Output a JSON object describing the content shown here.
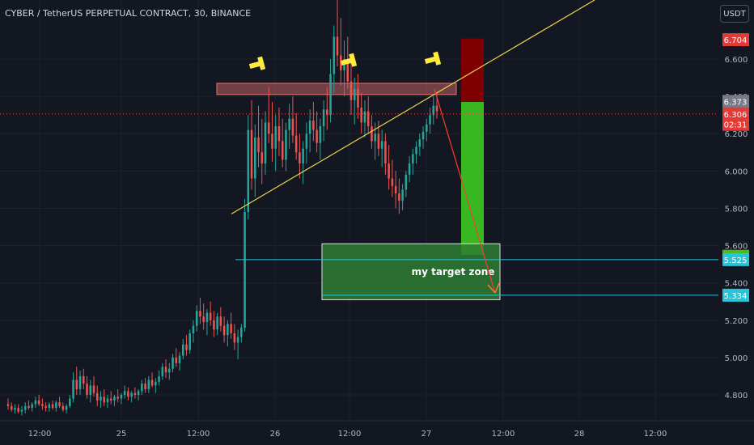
{
  "header": {
    "symbol_title": "CYBER / TetherUS PERPETUAL CONTRACT, 30, BINANCE"
  },
  "currency_button": "USDT",
  "colors": {
    "background": "#131722",
    "bull_candle": "#26a69a",
    "bear_candle": "#ef5350",
    "trendline": "#e8d44d",
    "resistance_zone": "#e57373",
    "target_zone": "#2e7d32",
    "stop_zone": "#7f0000",
    "profit_zone": "#37b820",
    "arrow": "#ff3b30",
    "cyan_line": "#26c6da"
  },
  "chart_data": {
    "type": "candlestick",
    "title": "CYBER / TetherUS PERPETUAL CONTRACT, 30, BINANCE",
    "y_tick_labels": [
      "6.600",
      "6.400",
      "6.200",
      "6.000",
      "5.800",
      "5.600",
      "5.400",
      "5.200",
      "5.000",
      "4.800"
    ],
    "x_tick_labels": [
      "12:00",
      "25",
      "12:00",
      "26",
      "12:00",
      "27",
      "12:00",
      "28",
      "12:00"
    ],
    "ylim": [
      4.69,
      7.0
    ],
    "annotations": {
      "target_zone_label": "my target zone",
      "resistance_zone": {
        "low": 6.41,
        "high": 6.47
      },
      "target_zone": {
        "low": 5.31,
        "high": 5.61
      },
      "stop_zone": {
        "low": 6.37,
        "high": 6.71
      },
      "profit_zone": {
        "low": 5.55,
        "high": 6.37
      },
      "trendline": {
        "start": {
          "x": "25 15:00",
          "y": 5.77
        },
        "end": {
          "x": "27 12:00",
          "y": 7.0
        }
      },
      "cyan_lines": [
        5.525,
        5.334
      ]
    },
    "price_labels": [
      {
        "text": "6.704",
        "value": 6.704,
        "color": "#e53935"
      },
      {
        "text": "6.373",
        "value": 6.373,
        "color": "#787b86"
      },
      {
        "text": "6.306",
        "value": 6.306,
        "color": "#e53935"
      },
      {
        "text": "02:31",
        "value": 6.25,
        "color": "#e53935"
      },
      {
        "text": "5.543",
        "value": 5.543,
        "color": "#4cbb17"
      },
      {
        "text": "5.525",
        "value": 5.525,
        "color": "#26c6da"
      },
      {
        "text": "5.334",
        "value": 5.334,
        "color": "#26c6da"
      }
    ],
    "candles_ohlc": [
      [
        4.75,
        4.78,
        4.72,
        4.74
      ],
      [
        4.74,
        4.76,
        4.71,
        4.72
      ],
      [
        4.72,
        4.75,
        4.7,
        4.73
      ],
      [
        4.73,
        4.75,
        4.7,
        4.71
      ],
      [
        4.71,
        4.74,
        4.69,
        4.72
      ],
      [
        4.72,
        4.76,
        4.7,
        4.74
      ],
      [
        4.74,
        4.77,
        4.72,
        4.73
      ],
      [
        4.73,
        4.76,
        4.71,
        4.75
      ],
      [
        4.75,
        4.79,
        4.73,
        4.77
      ],
      [
        4.77,
        4.8,
        4.74,
        4.75
      ],
      [
        4.75,
        4.78,
        4.72,
        4.74
      ],
      [
        4.74,
        4.76,
        4.71,
        4.73
      ],
      [
        4.73,
        4.76,
        4.71,
        4.75
      ],
      [
        4.75,
        4.77,
        4.72,
        4.73
      ],
      [
        4.73,
        4.77,
        4.71,
        4.76
      ],
      [
        4.76,
        4.79,
        4.73,
        4.74
      ],
      [
        4.74,
        4.76,
        4.71,
        4.72
      ],
      [
        4.72,
        4.75,
        4.7,
        4.74
      ],
      [
        4.74,
        4.8,
        4.73,
        4.78
      ],
      [
        4.78,
        4.92,
        4.76,
        4.88
      ],
      [
        4.88,
        4.95,
        4.8,
        4.83
      ],
      [
        4.83,
        4.93,
        4.8,
        4.9
      ],
      [
        4.9,
        4.94,
        4.83,
        4.86
      ],
      [
        4.86,
        4.9,
        4.78,
        4.8
      ],
      [
        4.8,
        4.88,
        4.76,
        4.85
      ],
      [
        4.85,
        4.9,
        4.79,
        4.81
      ],
      [
        4.81,
        4.85,
        4.74,
        4.77
      ],
      [
        4.77,
        4.82,
        4.73,
        4.79
      ],
      [
        4.79,
        4.83,
        4.74,
        4.76
      ],
      [
        4.76,
        4.8,
        4.73,
        4.78
      ],
      [
        4.78,
        4.82,
        4.75,
        4.77
      ],
      [
        4.77,
        4.8,
        4.74,
        4.79
      ],
      [
        4.79,
        4.83,
        4.76,
        4.78
      ],
      [
        4.78,
        4.81,
        4.75,
        4.8
      ],
      [
        4.8,
        4.85,
        4.78,
        4.82
      ],
      [
        4.82,
        4.84,
        4.77,
        4.79
      ],
      [
        4.79,
        4.82,
        4.76,
        4.81
      ],
      [
        4.81,
        4.84,
        4.78,
        4.8
      ],
      [
        4.8,
        4.83,
        4.77,
        4.82
      ],
      [
        4.82,
        4.88,
        4.8,
        4.86
      ],
      [
        4.86,
        4.89,
        4.81,
        4.83
      ],
      [
        4.83,
        4.9,
        4.81,
        4.88
      ],
      [
        4.88,
        4.92,
        4.84,
        4.85
      ],
      [
        4.85,
        4.89,
        4.81,
        4.87
      ],
      [
        4.87,
        4.93,
        4.85,
        4.9
      ],
      [
        4.9,
        4.97,
        4.88,
        4.95
      ],
      [
        4.95,
        4.99,
        4.89,
        4.92
      ],
      [
        4.92,
        4.97,
        4.88,
        4.94
      ],
      [
        4.94,
        5.02,
        4.92,
        5.0
      ],
      [
        5.0,
        5.05,
        4.95,
        4.97
      ],
      [
        4.97,
        5.03,
        4.93,
        5.01
      ],
      [
        5.01,
        5.1,
        4.99,
        5.07
      ],
      [
        5.07,
        5.12,
        5.01,
        5.04
      ],
      [
        5.04,
        5.15,
        5.02,
        5.13
      ],
      [
        5.13,
        5.2,
        5.08,
        5.17
      ],
      [
        5.17,
        5.28,
        5.14,
        5.25
      ],
      [
        5.25,
        5.32,
        5.18,
        5.22
      ],
      [
        5.22,
        5.29,
        5.15,
        5.19
      ],
      [
        5.19,
        5.26,
        5.12,
        5.24
      ],
      [
        5.24,
        5.3,
        5.17,
        5.2
      ],
      [
        5.2,
        5.25,
        5.11,
        5.15
      ],
      [
        5.15,
        5.24,
        5.12,
        5.22
      ],
      [
        5.22,
        5.27,
        5.14,
        5.17
      ],
      [
        5.17,
        5.22,
        5.08,
        5.12
      ],
      [
        5.12,
        5.2,
        5.06,
        5.18
      ],
      [
        5.18,
        5.24,
        5.1,
        5.13
      ],
      [
        5.13,
        5.18,
        5.04,
        5.08
      ],
      [
        5.08,
        5.15,
        4.99,
        5.11
      ],
      [
        5.11,
        5.18,
        5.08,
        5.16
      ],
      [
        5.16,
        5.85,
        5.14,
        5.78
      ],
      [
        5.78,
        6.3,
        5.74,
        6.22
      ],
      [
        6.22,
        6.38,
        5.9,
        5.96
      ],
      [
        5.96,
        6.25,
        5.86,
        6.18
      ],
      [
        6.18,
        6.35,
        6.02,
        6.1
      ],
      [
        6.1,
        6.28,
        5.93,
        6.04
      ],
      [
        6.04,
        6.32,
        5.98,
        6.26
      ],
      [
        6.26,
        6.45,
        6.15,
        6.2
      ],
      [
        6.2,
        6.37,
        6.05,
        6.12
      ],
      [
        6.12,
        6.3,
        6.0,
        6.24
      ],
      [
        6.24,
        6.34,
        6.08,
        6.16
      ],
      [
        6.16,
        6.28,
        6.02,
        6.06
      ],
      [
        6.06,
        6.26,
        6.0,
        6.22
      ],
      [
        6.22,
        6.36,
        6.12,
        6.28
      ],
      [
        6.28,
        6.4,
        6.15,
        6.19
      ],
      [
        6.19,
        6.31,
        6.06,
        6.1
      ],
      [
        6.1,
        6.2,
        5.96,
        6.04
      ],
      [
        6.04,
        6.16,
        5.93,
        6.12
      ],
      [
        6.12,
        6.26,
        6.04,
        6.2
      ],
      [
        6.2,
        6.33,
        6.1,
        6.27
      ],
      [
        6.27,
        6.37,
        6.16,
        6.22
      ],
      [
        6.22,
        6.32,
        6.1,
        6.15
      ],
      [
        6.15,
        6.28,
        6.06,
        6.24
      ],
      [
        6.24,
        6.38,
        6.16,
        6.33
      ],
      [
        6.33,
        6.45,
        6.22,
        6.3
      ],
      [
        6.3,
        6.6,
        6.26,
        6.52
      ],
      [
        6.52,
        6.78,
        6.42,
        6.72
      ],
      [
        6.72,
        6.92,
        6.56,
        6.62
      ],
      [
        6.62,
        6.82,
        6.46,
        6.54
      ],
      [
        6.54,
        6.7,
        6.4,
        6.6
      ],
      [
        6.6,
        6.72,
        6.44,
        6.48
      ],
      [
        6.48,
        6.58,
        6.3,
        6.38
      ],
      [
        6.38,
        6.5,
        6.25,
        6.44
      ],
      [
        6.44,
        6.52,
        6.28,
        6.34
      ],
      [
        6.34,
        6.42,
        6.2,
        6.26
      ],
      [
        6.26,
        6.38,
        6.18,
        6.32
      ],
      [
        6.32,
        6.4,
        6.2,
        6.24
      ],
      [
        6.24,
        6.3,
        6.12,
        6.16
      ],
      [
        6.16,
        6.26,
        6.06,
        6.2
      ],
      [
        6.2,
        6.27,
        6.08,
        6.12
      ],
      [
        6.12,
        6.22,
        6.02,
        6.16
      ],
      [
        6.16,
        6.2,
        5.98,
        6.04
      ],
      [
        6.04,
        6.14,
        5.9,
        5.96
      ],
      [
        5.96,
        6.06,
        5.86,
        5.92
      ],
      [
        5.92,
        6.0,
        5.8,
        5.88
      ],
      [
        5.88,
        5.96,
        5.77,
        5.84
      ],
      [
        5.84,
        5.93,
        5.79,
        5.9
      ],
      [
        5.9,
        6.0,
        5.86,
        5.98
      ],
      [
        5.98,
        6.08,
        5.94,
        6.04
      ],
      [
        6.04,
        6.12,
        5.98,
        6.09
      ],
      [
        6.09,
        6.16,
        6.04,
        6.13
      ],
      [
        6.13,
        6.2,
        6.08,
        6.17
      ],
      [
        6.17,
        6.24,
        6.12,
        6.21
      ],
      [
        6.21,
        6.28,
        6.16,
        6.25
      ],
      [
        6.25,
        6.34,
        6.2,
        6.3
      ],
      [
        6.3,
        6.4,
        6.25,
        6.35
      ],
      [
        6.35,
        6.41,
        6.28,
        6.32
      ]
    ]
  }
}
